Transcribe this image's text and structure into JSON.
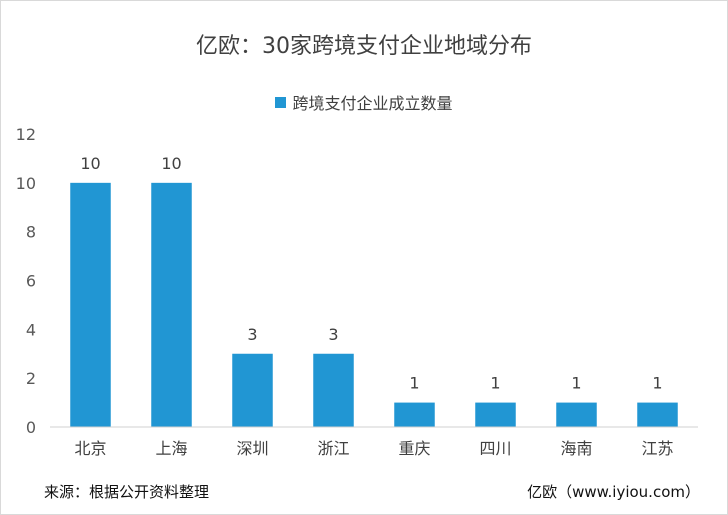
{
  "title": "亿欧：30家跨境支付企业地域分布",
  "footer": {
    "source": "来源：根据公开资料整理",
    "credit": "亿欧（www.iyiou.com）"
  },
  "chart_data": {
    "type": "bar",
    "title": "亿欧：30家跨境支付企业地域分布",
    "categories": [
      "北京",
      "上海",
      "深圳",
      "浙江",
      "重庆",
      "四川",
      "海南",
      "江苏"
    ],
    "series": [
      {
        "name": "跨境支付企业成立数量",
        "values": [
          10,
          10,
          3,
          3,
          1,
          1,
          1,
          1
        ],
        "color": "#2196d3"
      }
    ],
    "y_ticks": [
      "0",
      "2",
      "4",
      "6",
      "8",
      "10",
      "12"
    ],
    "ylim": [
      0,
      12
    ],
    "grid": false,
    "legend_position": "top",
    "data_labels": true
  }
}
